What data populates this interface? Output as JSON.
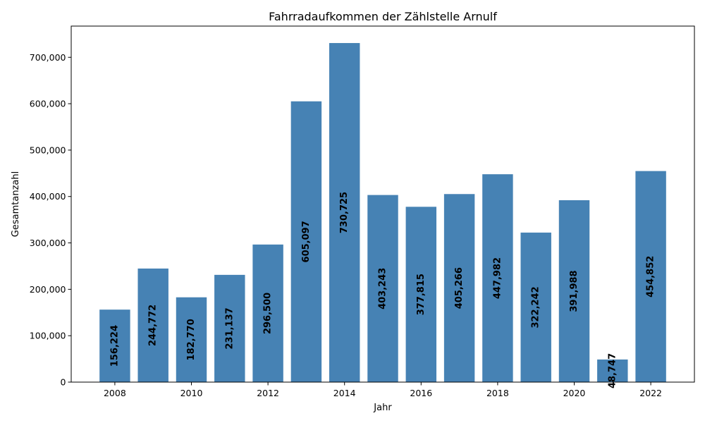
{
  "chart_data": {
    "type": "bar",
    "title": "Fahrradaufkommen der Zählstelle Arnulf",
    "xlabel": "Jahr",
    "ylabel": "Gesamtanzahl",
    "x": [
      2008,
      2009,
      2010,
      2011,
      2012,
      2013,
      2014,
      2015,
      2016,
      2017,
      2018,
      2019,
      2020,
      2021,
      2022
    ],
    "values": [
      156224,
      244772,
      182770,
      231137,
      296500,
      605097,
      730725,
      403243,
      377815,
      405266,
      447982,
      322242,
      391988,
      48747,
      454852
    ],
    "data_labels": [
      "156,224",
      "244,772",
      "182,770",
      "231,137",
      "296,500",
      "605,097",
      "730,725",
      "403,243",
      "377,815",
      "405,266",
      "447,982",
      "322,242",
      "391,988",
      "48,747",
      "454,852"
    ],
    "xticks": [
      2008,
      2010,
      2012,
      2014,
      2016,
      2018,
      2020,
      2022
    ],
    "xtick_labels": [
      "2008",
      "2010",
      "2012",
      "2014",
      "2016",
      "2018",
      "2020",
      "2022"
    ],
    "yticks": [
      0,
      100000,
      200000,
      300000,
      400000,
      500000,
      600000,
      700000
    ],
    "ytick_labels": [
      "0",
      "100,000",
      "200,000",
      "300,000",
      "400,000",
      "500,000",
      "600,000",
      "700,000"
    ],
    "xlim": [
      2006.86,
      2023.14
    ],
    "ylim": [
      0,
      767261
    ],
    "bar_color": "#4682b4",
    "grid": false,
    "legend": "none"
  }
}
